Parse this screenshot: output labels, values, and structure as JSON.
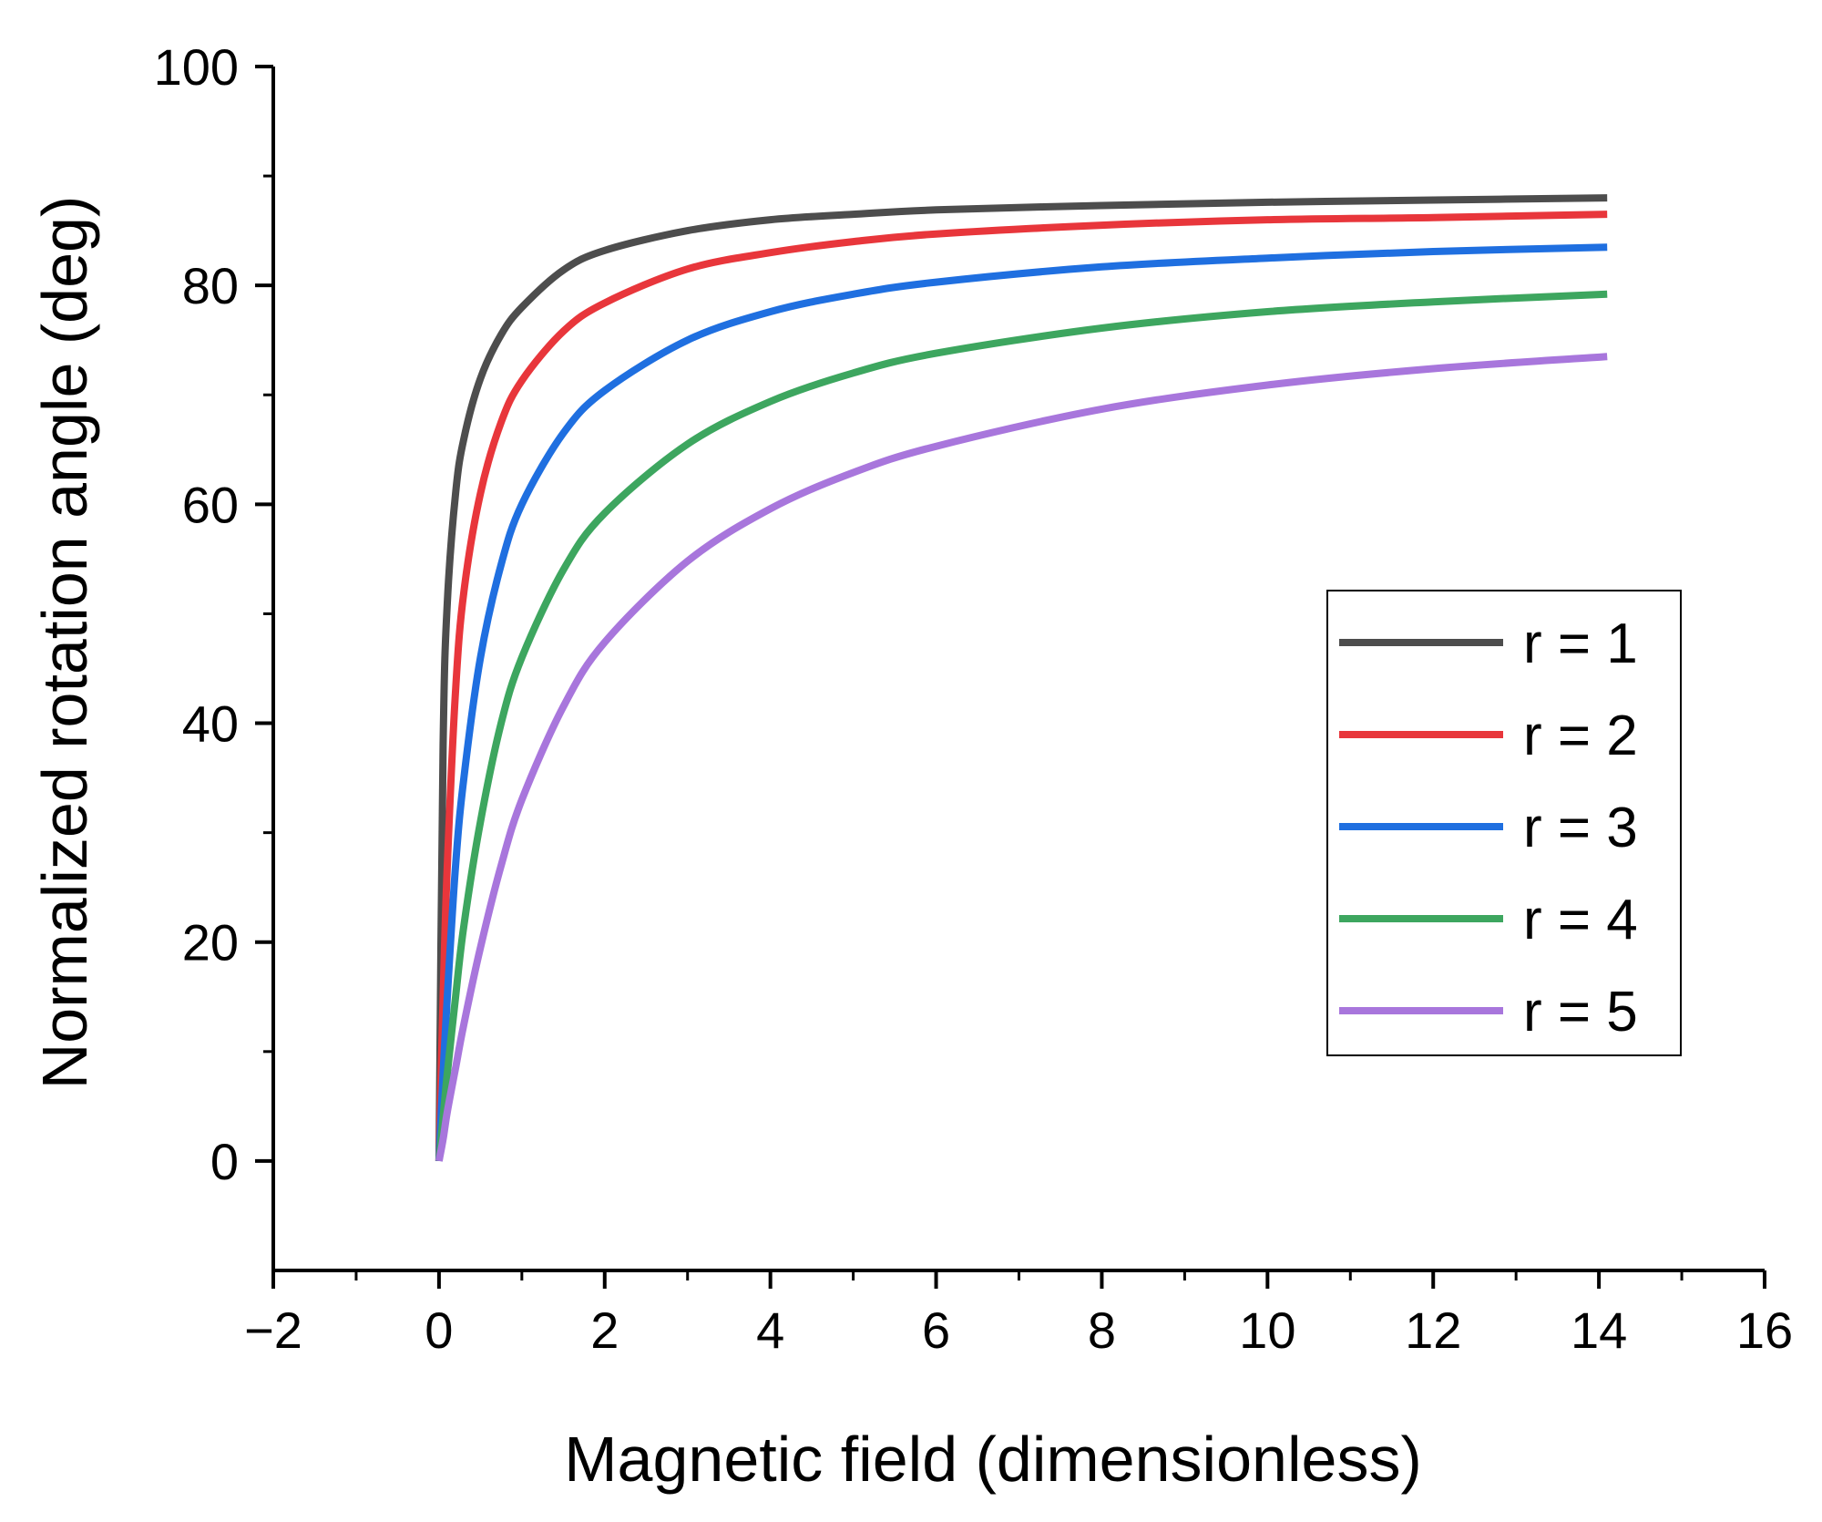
{
  "chart_data": {
    "type": "line",
    "title": "",
    "xlabel": "Magnetic field (dimensionless)",
    "ylabel": "Normalized rotation angle (deg)",
    "xlim": [
      -2,
      16
    ],
    "ylim": [
      -10,
      100
    ],
    "xticks": [
      -2,
      0,
      2,
      4,
      6,
      8,
      10,
      12,
      14,
      16
    ],
    "xtick_labels": [
      "−2",
      "0",
      "2",
      "4",
      "6",
      "8",
      "10",
      "12",
      "14",
      "16"
    ],
    "yticks": [
      0,
      20,
      40,
      60,
      80,
      100
    ],
    "ytick_labels": [
      "0",
      "20",
      "40",
      "60",
      "80",
      "100"
    ],
    "grid": false,
    "legend_position": "right",
    "x": [
      0,
      0.05,
      0.1,
      0.2,
      0.3,
      0.5,
      0.75,
      1,
      1.5,
      2,
      3,
      4,
      5,
      6,
      8,
      10,
      12,
      14.1
    ],
    "series": [
      {
        "name": "r = 1",
        "color": "#4d4d4d",
        "values": [
          0,
          38,
          51,
          61,
          66,
          71.5,
          75.5,
          78,
          81.4,
          83.2,
          85,
          86,
          86.5,
          86.9,
          87.3,
          87.6,
          87.8,
          88
        ]
      },
      {
        "name": "r = 2",
        "color": "#e8363b",
        "values": [
          0,
          15,
          27,
          43,
          52,
          61,
          67.5,
          71.3,
          75.8,
          78.4,
          81.5,
          83,
          84,
          84.7,
          85.5,
          86,
          86.2,
          86.5
        ]
      },
      {
        "name": "r = 3",
        "color": "#1f6fe0",
        "values": [
          0,
          8,
          15,
          27,
          35,
          46,
          54.5,
          60,
          66.5,
          70.4,
          75,
          77.6,
          79.2,
          80.3,
          81.7,
          82.5,
          83.1,
          83.5
        ]
      },
      {
        "name": "r = 4",
        "color": "#3da65f",
        "values": [
          0,
          4,
          8,
          15,
          21.5,
          31,
          40,
          46,
          54,
          59.2,
          65.5,
          69.4,
          72,
          73.8,
          76.1,
          77.6,
          78.5,
          79.2
        ]
      },
      {
        "name": "r = 5",
        "color": "#a876dc",
        "values": [
          0,
          2,
          4.5,
          8.5,
          12.5,
          19.5,
          27,
          33,
          41.5,
          47.4,
          54.8,
          59.6,
          62.9,
          65.3,
          68.7,
          70.9,
          72.4,
          73.5
        ]
      }
    ]
  }
}
